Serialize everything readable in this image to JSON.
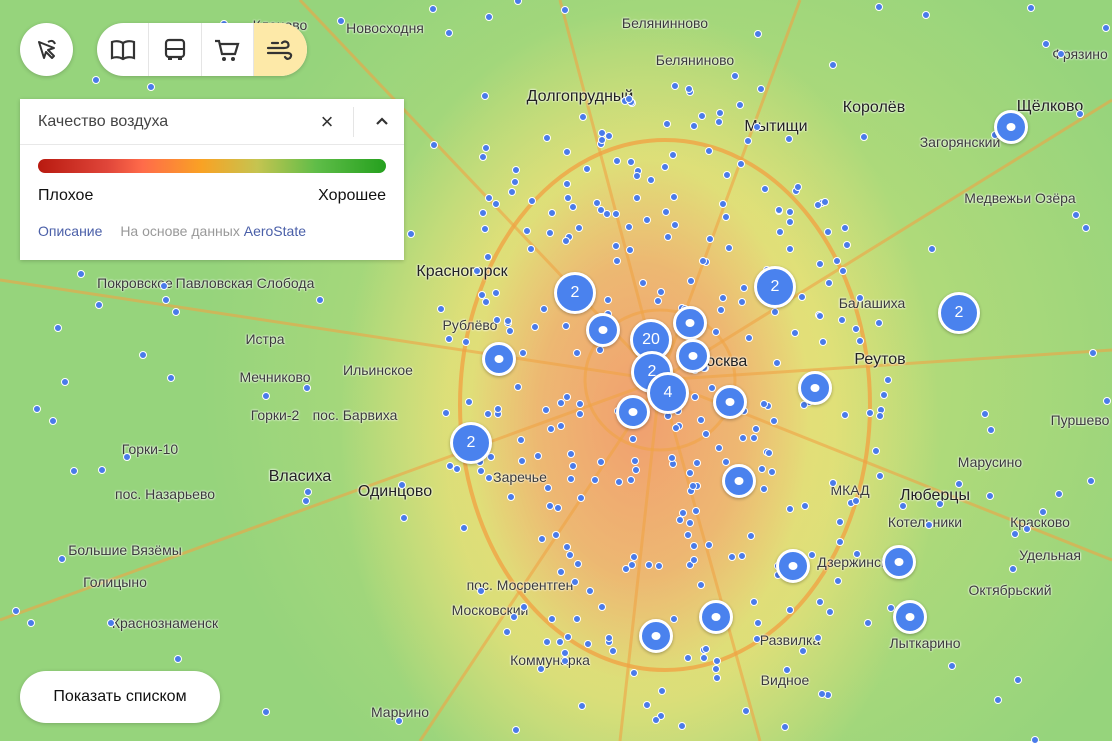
{
  "toolbar": {
    "pointer_icon": "hand-pointer-icon",
    "layers": [
      {
        "name": "guide",
        "icon": "book-icon"
      },
      {
        "name": "transport",
        "icon": "bus-icon"
      },
      {
        "name": "shopping",
        "icon": "cart-icon"
      },
      {
        "name": "air-quality",
        "icon": "wind-icon",
        "active": true
      }
    ],
    "active_color": "#fde9a8"
  },
  "panel": {
    "title": "Качество воздуха",
    "scale_bad": "Плохое",
    "scale_good": "Хорошее",
    "description_link": "Описание",
    "source_text": "На основе данных ",
    "source_link": "AeroState",
    "gradient_colors": [
      "#b81a10",
      "#ff6b4a",
      "#f9a224",
      "#c5c450",
      "#5fbd48",
      "#25a01e"
    ]
  },
  "show_list_button": "Показать списком",
  "map": {
    "labels": [
      "Долгопрудный",
      "Мытищи",
      "Королёв",
      "Щёлково",
      "Фрязино",
      "Красногорск",
      "Рублёво",
      "Павловская Слобода",
      "Покровское",
      "Истра",
      "Ильинское",
      "Мечниково",
      "Горки-2",
      "пос. Барвиха",
      "Власиха",
      "Одинцово",
      "Заречье",
      "пос. Назарьево",
      "Большие Вязёмы",
      "Голицыно",
      "Краснознаменск",
      "Московский",
      "пос. Мосрентген",
      "Коммунарка",
      "Марьино",
      "Реутов",
      "Балашиха",
      "Люберцы",
      "Котельники",
      "Дзержинский",
      "Лыткарино",
      "Октябрьский",
      "Удельная",
      "Развилка",
      "Видное",
      "Красково",
      "Москва",
      "МКАД",
      "Загорянский",
      "Медвежьи Озёра",
      "Пуршево",
      "Марусино",
      "Белянинново",
      "Беляниново",
      "Новосходня",
      "Горки-10",
      "Кленово"
    ],
    "clusters": [
      "2",
      "2",
      "2",
      "2",
      "20",
      "2",
      "4"
    ],
    "marker_color": "#4a82ee"
  }
}
